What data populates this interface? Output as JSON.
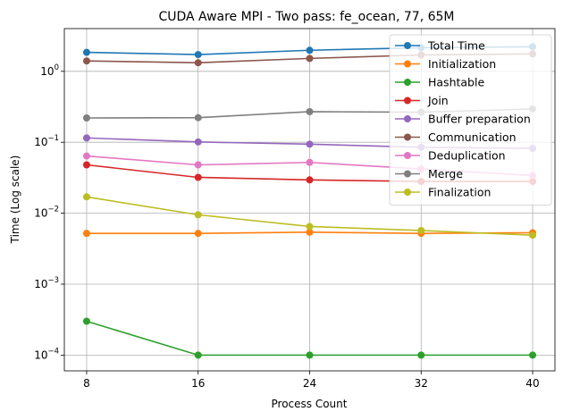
{
  "chart_data": {
    "type": "line",
    "title": "CUDA Aware MPI - Two pass: fe_ocean, 77, 65M",
    "xlabel": "Process Count",
    "ylabel": "Time (Log scale)",
    "yscale": "log",
    "ylim": [
      6e-05,
      4
    ],
    "x": [
      8,
      16,
      24,
      32,
      40
    ],
    "x_tick_labels": [
      "8",
      "16",
      "24",
      "32",
      "40"
    ],
    "y_ticks": [
      {
        "value": 0.0001,
        "base": "10",
        "exp": "−4"
      },
      {
        "value": 0.001,
        "base": "10",
        "exp": "−3"
      },
      {
        "value": 0.01,
        "base": "10",
        "exp": "−2"
      },
      {
        "value": 0.1,
        "base": "10",
        "exp": "−1"
      },
      {
        "value": 1,
        "base": "10",
        "exp": "0"
      }
    ],
    "grid": true,
    "legend_position": "top-right",
    "series": [
      {
        "name": "Total Time",
        "color": "#1f77b4",
        "values": [
          1.85,
          1.72,
          1.98,
          2.15,
          2.22
        ]
      },
      {
        "name": "Initialization",
        "color": "#ff7f0e",
        "values": [
          0.0052,
          0.0052,
          0.0054,
          0.0052,
          0.0053
        ]
      },
      {
        "name": "Hashtable",
        "color": "#2ca02c",
        "values": [
          0.0003,
          0.0001,
          0.0001,
          0.0001,
          0.0001
        ]
      },
      {
        "name": "Join",
        "color": "#d62728",
        "values": [
          0.048,
          0.032,
          0.0295,
          0.028,
          0.028
        ]
      },
      {
        "name": "Buffer preparation",
        "color": "#9467bd",
        "values": [
          0.115,
          0.101,
          0.094,
          0.085,
          0.082
        ]
      },
      {
        "name": "Communication",
        "color": "#8c564b",
        "values": [
          1.4,
          1.32,
          1.52,
          1.7,
          1.76
        ]
      },
      {
        "name": "Deduplication",
        "color": "#e377c2",
        "values": [
          0.064,
          0.048,
          0.052,
          0.042,
          0.034
        ]
      },
      {
        "name": "Merge",
        "color": "#7f7f7f",
        "values": [
          0.22,
          0.222,
          0.27,
          0.265,
          0.295
        ]
      },
      {
        "name": "Finalization",
        "color": "#bcbd22",
        "values": [
          0.017,
          0.0095,
          0.0065,
          0.0057,
          0.0049
        ]
      }
    ]
  }
}
